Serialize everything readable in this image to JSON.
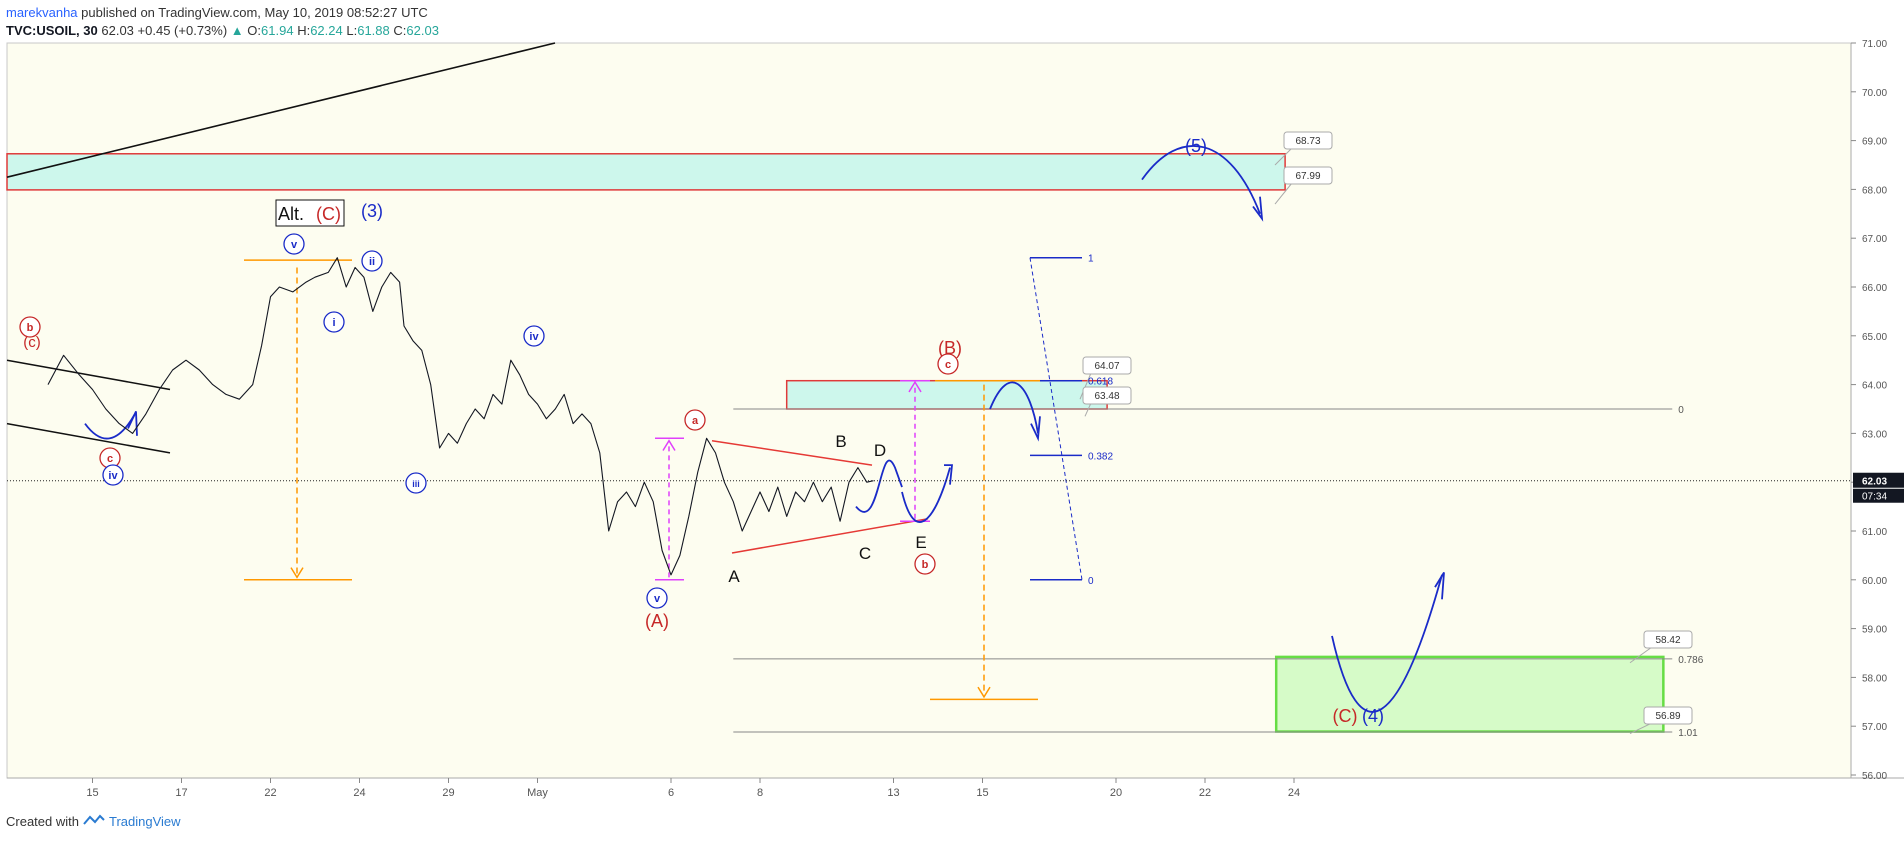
{
  "header": {
    "author": "marekvanha",
    "published_text": "published on TradingView.com, May 10, 2019 08:52:27 UTC",
    "symbol": "TVC:USOIL, 30",
    "last": "62.03",
    "change": "+0.45 (+0.73%)",
    "o_label": "O:",
    "o": "61.94",
    "h_label": "H:",
    "h": "62.24",
    "l_label": "L:",
    "l": "61.88",
    "c_label": "C:",
    "c": "62.03"
  },
  "footer": {
    "created_with": "Created with",
    "brand": "TradingView"
  },
  "colors": {
    "chart_bg": "#fdfdf0",
    "price": "#131722",
    "zone_red": "#e03a3a",
    "zone_fill": "#cdf7ec",
    "green_zone": "#66dd44",
    "green_fill": "#d6fbc8",
    "orange": "#ff9800",
    "magenta": "#e040fb",
    "wave_blue": "#1a2bc8",
    "wave_red": "#c62828"
  },
  "chart_data": {
    "type": "line",
    "price_labels": [
      "71.00",
      "70.00",
      "69.00",
      "68.00",
      "67.00",
      "66.00",
      "65.00",
      "64.00",
      "63.00",
      "62.00",
      "61.00",
      "60.00",
      "59.00",
      "58.00",
      "57.00",
      "56.00"
    ],
    "date_labels": [
      {
        "t": 1,
        "label": "15"
      },
      {
        "t": 3,
        "label": "17"
      },
      {
        "t": 5,
        "label": "22"
      },
      {
        "t": 7,
        "label": "24"
      },
      {
        "t": 9,
        "label": "29"
      },
      {
        "t": 11,
        "label": "May"
      },
      {
        "t": 14,
        "label": "6"
      },
      {
        "t": 16,
        "label": "8"
      },
      {
        "t": 19,
        "label": "13"
      },
      {
        "t": 21,
        "label": "15"
      },
      {
        "t": 24,
        "label": "20"
      },
      {
        "t": 26,
        "label": "22"
      },
      {
        "t": 28,
        "label": "24"
      }
    ],
    "current_price": "62.03",
    "countdown": "07:34",
    "price_path": [
      [
        0,
        64.0
      ],
      [
        0.35,
        64.6
      ],
      [
        0.7,
        64.2
      ],
      [
        1.0,
        63.9
      ],
      [
        1.3,
        63.5
      ],
      [
        1.6,
        63.2
      ],
      [
        1.9,
        63.0
      ],
      [
        2.2,
        63.4
      ],
      [
        2.5,
        63.9
      ],
      [
        2.8,
        64.3
      ],
      [
        3.1,
        64.5
      ],
      [
        3.4,
        64.3
      ],
      [
        3.7,
        64.0
      ],
      [
        4.0,
        63.8
      ],
      [
        4.3,
        63.7
      ],
      [
        4.6,
        64.0
      ],
      [
        4.8,
        64.8
      ],
      [
        5.0,
        65.8
      ],
      [
        5.2,
        66.0
      ],
      [
        5.5,
        65.9
      ],
      [
        5.8,
        66.1
      ],
      [
        6.0,
        66.2
      ],
      [
        6.3,
        66.3
      ],
      [
        6.5,
        66.6
      ],
      [
        6.7,
        66.0
      ],
      [
        6.9,
        66.4
      ],
      [
        7.1,
        66.2
      ],
      [
        7.3,
        65.5
      ],
      [
        7.5,
        66.0
      ],
      [
        7.7,
        66.3
      ],
      [
        7.9,
        66.1
      ],
      [
        8.0,
        65.2
      ],
      [
        8.2,
        64.9
      ],
      [
        8.4,
        64.7
      ],
      [
        8.6,
        64.0
      ],
      [
        8.8,
        62.7
      ],
      [
        9.0,
        63.0
      ],
      [
        9.2,
        62.8
      ],
      [
        9.4,
        63.2
      ],
      [
        9.6,
        63.5
      ],
      [
        9.8,
        63.3
      ],
      [
        10.0,
        63.8
      ],
      [
        10.2,
        63.6
      ],
      [
        10.4,
        64.5
      ],
      [
        10.6,
        64.2
      ],
      [
        10.8,
        63.8
      ],
      [
        11.0,
        63.6
      ],
      [
        11.2,
        63.3
      ],
      [
        11.4,
        63.5
      ],
      [
        11.6,
        63.8
      ],
      [
        11.8,
        63.2
      ],
      [
        12.0,
        63.4
      ],
      [
        12.2,
        63.2
      ],
      [
        12.4,
        62.6
      ],
      [
        12.6,
        61.0
      ],
      [
        12.8,
        61.6
      ],
      [
        13.0,
        61.8
      ],
      [
        13.2,
        61.5
      ],
      [
        13.4,
        62.0
      ],
      [
        13.6,
        61.6
      ],
      [
        13.8,
        60.6
      ],
      [
        14.0,
        60.1
      ],
      [
        14.2,
        60.5
      ],
      [
        14.4,
        61.3
      ],
      [
        14.6,
        62.2
      ],
      [
        14.8,
        62.9
      ],
      [
        15.0,
        62.6
      ],
      [
        15.2,
        62.0
      ],
      [
        15.4,
        61.6
      ],
      [
        15.6,
        61.0
      ],
      [
        15.8,
        61.4
      ],
      [
        16.0,
        61.8
      ],
      [
        16.2,
        61.4
      ],
      [
        16.4,
        61.9
      ],
      [
        16.6,
        61.3
      ],
      [
        16.8,
        61.8
      ],
      [
        17.0,
        61.6
      ],
      [
        17.2,
        62.0
      ],
      [
        17.4,
        61.6
      ],
      [
        17.6,
        61.9
      ],
      [
        17.8,
        61.2
      ],
      [
        18.0,
        62.0
      ],
      [
        18.2,
        62.3
      ],
      [
        18.4,
        62.0
      ],
      [
        18.55,
        62.03
      ]
    ],
    "grey_hlines": [
      {
        "price": 63.5,
        "x_start": 15.4,
        "x_end": 36.5,
        "label": "0"
      },
      {
        "price": 58.38,
        "x_start": 15.4,
        "x_end": 36.5,
        "label": "0.786"
      },
      {
        "price": 56.88,
        "x_start": 15.4,
        "x_end": 36.5,
        "label": "1.01"
      }
    ],
    "fib_ladder": [
      {
        "price": 66.6,
        "label": "1"
      },
      {
        "price": 64.08,
        "label": "0.618"
      },
      {
        "price": 62.55,
        "label": "0.382"
      },
      {
        "price": 60.0,
        "label": "0"
      }
    ],
    "zones": [
      {
        "kind": "red",
        "x_start": -1,
        "x_end": 27.8,
        "top": 68.73,
        "bottom": 67.99
      },
      {
        "kind": "red",
        "x_start": 16.6,
        "x_end": 23.8,
        "top": 64.08,
        "bottom": 63.5
      },
      {
        "kind": "green",
        "x_start": 27.6,
        "x_end": 36.3,
        "top": 58.42,
        "bottom": 56.89
      }
    ],
    "price_callouts": [
      "68.73",
      "67.99",
      "64.07",
      "63.48",
      "58.42",
      "56.89"
    ],
    "wave_labels_plain": [
      {
        "text": "(3)",
        "color": "blue"
      },
      {
        "text": "(5)",
        "color": "blue"
      },
      {
        "text": "(A)",
        "color": "red"
      },
      {
        "text": "(B)",
        "color": "red"
      },
      {
        "text": "(C)",
        "color": "red"
      },
      {
        "text": "(4)",
        "color": "blue"
      },
      {
        "text": "(c)",
        "color": "red"
      },
      {
        "text": "A",
        "color": "black"
      },
      {
        "text": "B",
        "color": "black"
      },
      {
        "text": "C",
        "color": "black"
      },
      {
        "text": "D",
        "color": "black"
      },
      {
        "text": "E",
        "color": "black"
      }
    ],
    "wave_labels_circled": [
      {
        "text": "b",
        "color": "red"
      },
      {
        "text": "c",
        "color": "red"
      },
      {
        "text": "iv",
        "color": "blue"
      },
      {
        "text": "v",
        "color": "blue"
      },
      {
        "text": "i",
        "color": "blue"
      },
      {
        "text": "ii",
        "color": "blue"
      },
      {
        "text": "iii",
        "color": "blue"
      },
      {
        "text": "iv",
        "color": "blue"
      },
      {
        "text": "v",
        "color": "blue"
      },
      {
        "text": "a",
        "color": "red"
      },
      {
        "text": "c",
        "color": "red"
      },
      {
        "text": "b",
        "color": "red"
      }
    ],
    "alt_box": {
      "prefix": "Alt.",
      "wave": "(C)"
    }
  }
}
